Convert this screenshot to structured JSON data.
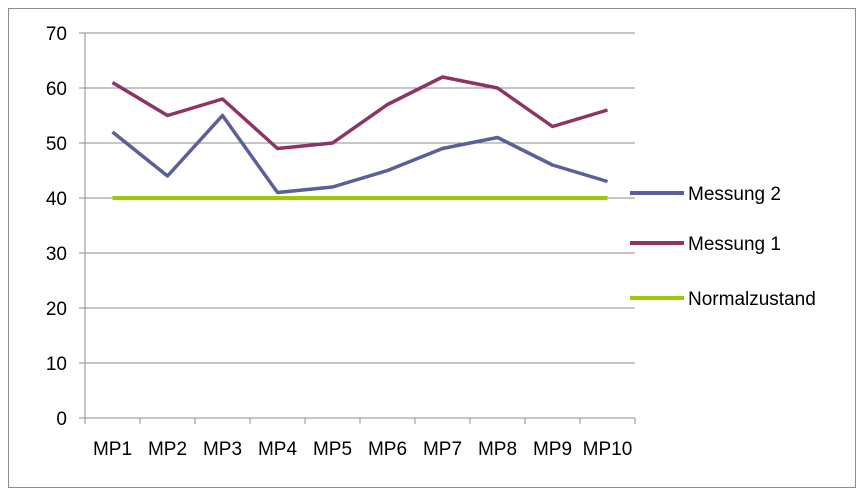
{
  "chart_data": {
    "type": "line",
    "categories": [
      "MP1",
      "MP2",
      "MP3",
      "MP4",
      "MP5",
      "MP6",
      "MP7",
      "MP8",
      "MP9",
      "MP10"
    ],
    "series": [
      {
        "name": "Messung 2",
        "color": "#5B5E98",
        "values": [
          52,
          44,
          55,
          41,
          42,
          45,
          49,
          51,
          46,
          43
        ]
      },
      {
        "name": "Messung 1",
        "color": "#8E3464",
        "values": [
          61,
          55,
          58,
          49,
          50,
          57,
          62,
          60,
          53,
          56
        ]
      },
      {
        "name": "Normalzustand",
        "color": "#99CC00",
        "values": [
          40,
          40,
          40,
          40,
          40,
          40,
          40,
          40,
          40,
          40
        ]
      }
    ],
    "yticks": [
      0,
      10,
      20,
      30,
      40,
      50,
      60,
      70
    ],
    "ylim": [
      0,
      70
    ],
    "grid": "horizontal",
    "legend": "right",
    "title": "",
    "xlabel": "",
    "ylabel": ""
  }
}
